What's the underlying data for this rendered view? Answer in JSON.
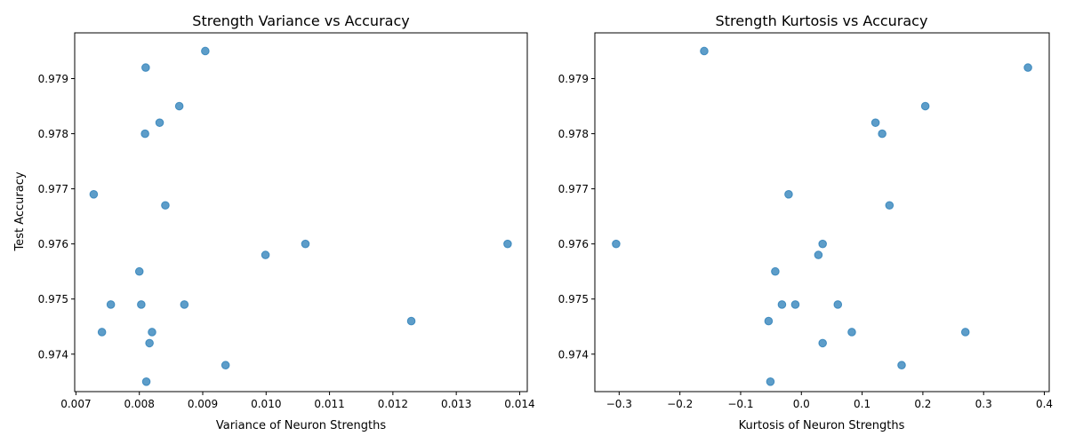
{
  "chart_data": [
    {
      "type": "scatter",
      "title": "Strength Variance vs Accuracy",
      "xlabel": "Variance of Neuron Strengths",
      "ylabel": "Test Accuracy",
      "xlim": [
        0.00698,
        0.01412
      ],
      "ylim": [
        0.97332,
        0.97983
      ],
      "xticks": [
        0.007,
        0.008,
        0.009,
        0.01,
        0.011,
        0.012,
        0.013,
        0.014
      ],
      "xtick_labels": [
        "0.007",
        "0.008",
        "0.009",
        "0.010",
        "0.011",
        "0.012",
        "0.013",
        "0.014"
      ],
      "yticks": [
        0.974,
        0.975,
        0.976,
        0.977,
        0.978,
        0.979
      ],
      "ytick_labels": [
        "0.974",
        "0.975",
        "0.976",
        "0.977",
        "0.978",
        "0.979"
      ],
      "grid": false,
      "point_color": "#1f77b4",
      "points": [
        {
          "x": 0.00904,
          "y": 0.9795
        },
        {
          "x": 0.0081,
          "y": 0.9792
        },
        {
          "x": 0.00863,
          "y": 0.9785
        },
        {
          "x": 0.00832,
          "y": 0.9782
        },
        {
          "x": 0.00809,
          "y": 0.978
        },
        {
          "x": 0.00728,
          "y": 0.9769
        },
        {
          "x": 0.00841,
          "y": 0.9767
        },
        {
          "x": 0.01062,
          "y": 0.976
        },
        {
          "x": 0.01381,
          "y": 0.976
        },
        {
          "x": 0.00999,
          "y": 0.9758
        },
        {
          "x": 0.008,
          "y": 0.9755
        },
        {
          "x": 0.00755,
          "y": 0.9749
        },
        {
          "x": 0.00803,
          "y": 0.9749
        },
        {
          "x": 0.00871,
          "y": 0.9749
        },
        {
          "x": 0.01229,
          "y": 0.9746
        },
        {
          "x": 0.00741,
          "y": 0.9744
        },
        {
          "x": 0.0082,
          "y": 0.9744
        },
        {
          "x": 0.00816,
          "y": 0.9742
        },
        {
          "x": 0.00936,
          "y": 0.9738
        },
        {
          "x": 0.00811,
          "y": 0.9735
        }
      ]
    },
    {
      "type": "scatter",
      "title": "Strength Kurtosis vs Accuracy",
      "xlabel": "Kurtosis of Neuron Strengths",
      "ylabel": "",
      "xlim": [
        -0.34,
        0.408
      ],
      "ylim": [
        0.97332,
        0.97983
      ],
      "xticks": [
        -0.3,
        -0.2,
        -0.1,
        0.0,
        0.1,
        0.2,
        0.3,
        0.4
      ],
      "xtick_labels": [
        "−0.3",
        "−0.2",
        "−0.1",
        "0.0",
        "0.1",
        "0.2",
        "0.3",
        "0.4"
      ],
      "yticks": [
        0.974,
        0.975,
        0.976,
        0.977,
        0.978,
        0.979
      ],
      "ytick_labels": [
        "0.974",
        "0.975",
        "0.976",
        "0.977",
        "0.978",
        "0.979"
      ],
      "grid": false,
      "point_color": "#1f77b4",
      "points": [
        {
          "x": -0.16,
          "y": 0.9795
        },
        {
          "x": 0.373,
          "y": 0.9792
        },
        {
          "x": 0.204,
          "y": 0.9785
        },
        {
          "x": 0.122,
          "y": 0.9782
        },
        {
          "x": 0.133,
          "y": 0.978
        },
        {
          "x": -0.021,
          "y": 0.9769
        },
        {
          "x": 0.145,
          "y": 0.9767
        },
        {
          "x": -0.305,
          "y": 0.976
        },
        {
          "x": 0.035,
          "y": 0.976
        },
        {
          "x": 0.028,
          "y": 0.9758
        },
        {
          "x": -0.043,
          "y": 0.9755
        },
        {
          "x": -0.032,
          "y": 0.9749
        },
        {
          "x": -0.01,
          "y": 0.9749
        },
        {
          "x": 0.06,
          "y": 0.9749
        },
        {
          "x": -0.054,
          "y": 0.9746
        },
        {
          "x": 0.083,
          "y": 0.9744
        },
        {
          "x": 0.27,
          "y": 0.9744
        },
        {
          "x": 0.035,
          "y": 0.9742
        },
        {
          "x": 0.165,
          "y": 0.9738
        },
        {
          "x": -0.051,
          "y": 0.9735
        }
      ]
    }
  ]
}
